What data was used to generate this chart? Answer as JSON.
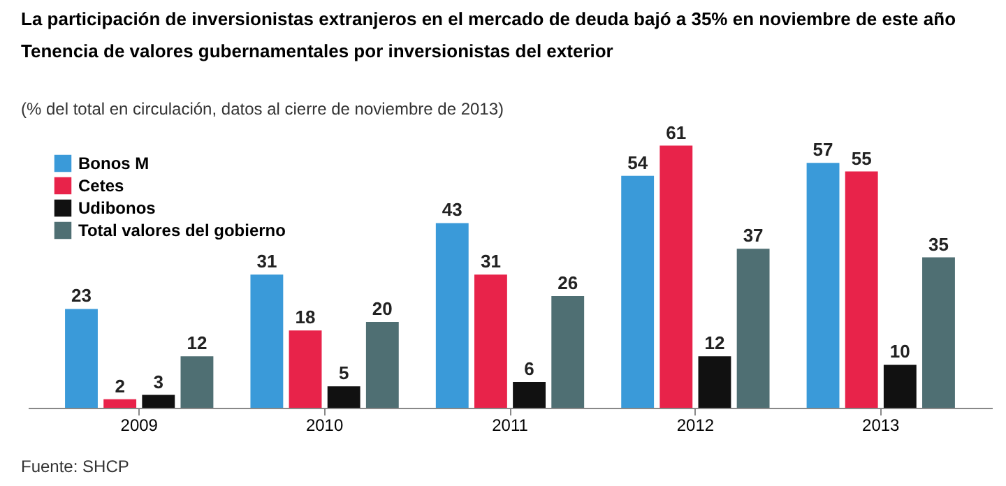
{
  "chart_data": {
    "type": "bar",
    "title": "La participación de inversionistas extranjeros en el mercado de deuda bajó a 35% en noviembre de este año",
    "subtitle": "Tenencia de valores gubernamentales por inversionistas del exterior",
    "categories": [
      "2009",
      "2010",
      "2011",
      "2012",
      "2013"
    ],
    "series": [
      {
        "name": "Bonos M",
        "color": "#3a9ad9",
        "values": [
          23,
          31,
          43,
          54,
          57
        ]
      },
      {
        "name": "Cetes",
        "color": "#e8234a",
        "values": [
          2,
          18,
          31,
          61,
          55
        ]
      },
      {
        "name": "Udibonos",
        "color": "#111111",
        "values": [
          3,
          5,
          6,
          12,
          10
        ]
      },
      {
        "name": "Total valores del gobierno",
        "color": "#4f6f73",
        "values": [
          12,
          20,
          26,
          37,
          35
        ]
      }
    ],
    "data_labels": true,
    "legend": "top left",
    "grid": false,
    "annotations": [
      "(% del total en circulación, datos al cierre de noviembre de 2013)",
      "Fuente: SHCP"
    ]
  }
}
